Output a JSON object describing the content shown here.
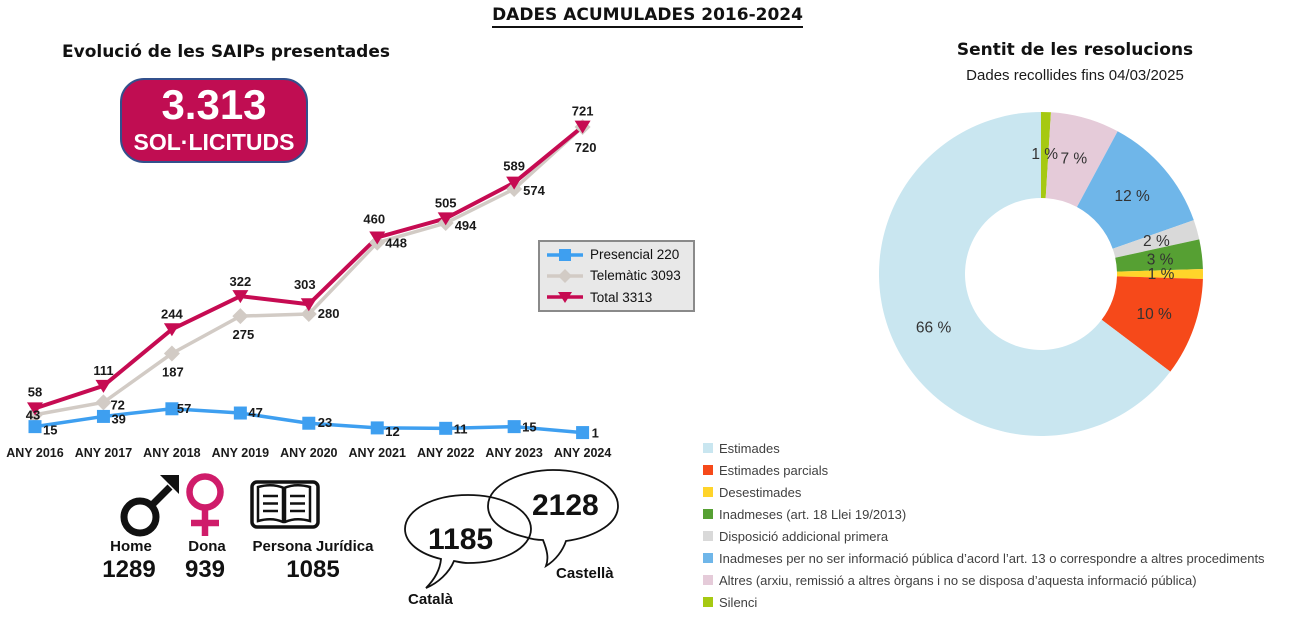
{
  "main_title": "DADES ACUMULADES 2016-2024",
  "left_chart": {
    "title": "Evolució de les SAIPs presentades",
    "badge": {
      "value": "3.313",
      "label": "SOL·LICITUDS"
    },
    "chart_data": {
      "type": "line",
      "x_labels": [
        "ANY 2016",
        "ANY 2017",
        "ANY 2018",
        "ANY 2019",
        "ANY 2020",
        "ANY 2021",
        "ANY 2022",
        "ANY 2023",
        "ANY 2024"
      ],
      "series": [
        {
          "name": "Presencial",
          "legend": "Presencial 220",
          "color": "#3E9FF0",
          "marker": "square",
          "values": [
            15,
            39,
            57,
            47,
            23,
            12,
            11,
            15,
            1
          ]
        },
        {
          "name": "Telemàtic",
          "legend": "Telemàtic 3093",
          "color": "#D2CBC5",
          "marker": "diamond",
          "values": [
            43,
            72,
            187,
            275,
            280,
            448,
            494,
            574,
            720
          ]
        },
        {
          "name": "Total",
          "legend": "Total 3313",
          "color": "#C60B52",
          "marker": "triangle-down",
          "values": [
            58,
            111,
            244,
            322,
            303,
            460,
            505,
            589,
            721
          ]
        }
      ]
    }
  },
  "demographics": [
    {
      "icon": "male-icon",
      "label": "Home",
      "value": "1289"
    },
    {
      "icon": "female-icon",
      "label": "Dona",
      "value": "939"
    },
    {
      "icon": "book-icon",
      "label": "Persona Jurídica",
      "value": "1085"
    }
  ],
  "languages": [
    {
      "value": "1185",
      "label": "Català"
    },
    {
      "value": "2128",
      "label": "Castellà"
    }
  ],
  "donut": {
    "title": "Sentit de les resolucions",
    "subtitle": "Dades recollides fins 04/03/2025",
    "chart_data": {
      "type": "donut",
      "unit": "%",
      "slices": [
        {
          "label": "Estimades",
          "pct": 66,
          "color": "#C9E6F0"
        },
        {
          "label": "Estimades parcials",
          "pct": 10,
          "color": "#F6491A"
        },
        {
          "label": "Desestimades",
          "pct": 1,
          "color": "#FFD42A"
        },
        {
          "label": "Inadmeses (art. 18 Llei 19/2013)",
          "pct": 3,
          "color": "#56A033"
        },
        {
          "label": "Disposició addicional primera",
          "pct": 2,
          "color": "#D9D9D9"
        },
        {
          "label": "Inadmeses per no ser informació pública d’acord l’art. 13 o correspondre a altres procediments",
          "pct": 12,
          "color": "#6FB6E9"
        },
        {
          "label": "Altres (arxiu, remissió a altres òrgans i no se disposa d’aquesta informació pública)",
          "pct": 7,
          "color": "#E5CBD9"
        },
        {
          "label": "Silenci",
          "pct": 1,
          "color": "#A6C912"
        }
      ]
    }
  }
}
